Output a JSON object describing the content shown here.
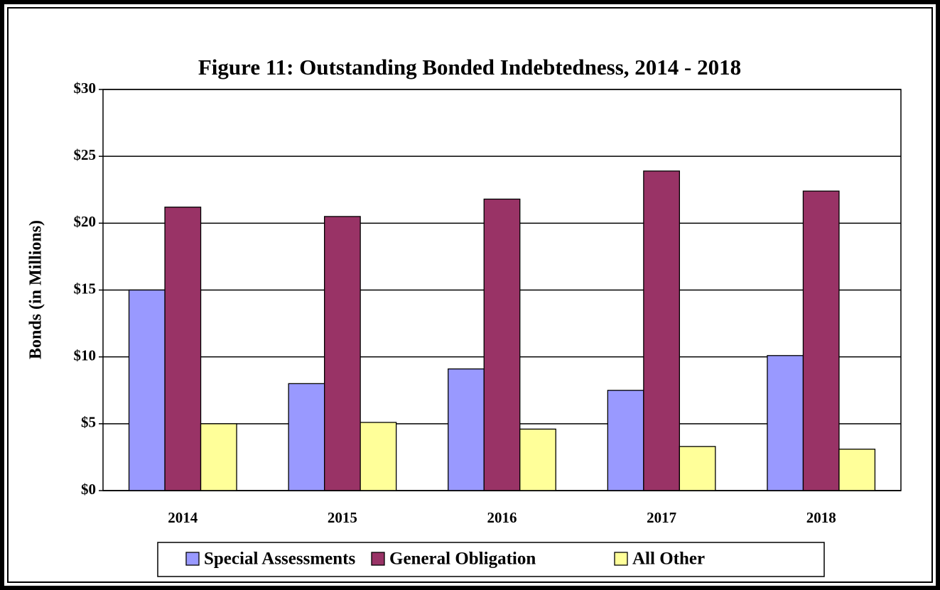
{
  "chart_data": {
    "type": "bar",
    "title": "Figure 11:  Outstanding Bonded Indebtedness, 2014 - 2018",
    "y_label": "Bonds (in Millions)",
    "categories": [
      "2014",
      "2015",
      "2016",
      "2017",
      "2018"
    ],
    "series": [
      {
        "name": "Special Assessments",
        "color": "#9999ff",
        "values": [
          15.0,
          8.0,
          9.1,
          7.5,
          10.1
        ]
      },
      {
        "name": "General Obligation",
        "color": "#993366",
        "values": [
          21.2,
          20.5,
          21.8,
          23.9,
          22.4
        ]
      },
      {
        "name": "All Other",
        "color": "#ffff99",
        "values": [
          5.0,
          5.1,
          4.6,
          3.3,
          3.1
        ]
      }
    ],
    "ylim": [
      0,
      30
    ],
    "yticks": [
      {
        "value": 0,
        "label": "$0"
      },
      {
        "value": 5,
        "label": "$5"
      },
      {
        "value": 10,
        "label": "$10"
      },
      {
        "value": 15,
        "label": "$15"
      },
      {
        "value": 20,
        "label": "$20"
      },
      {
        "value": 25,
        "label": "$25"
      },
      {
        "value": 30,
        "label": "$30"
      }
    ],
    "grid": true,
    "legend": "bottom"
  }
}
